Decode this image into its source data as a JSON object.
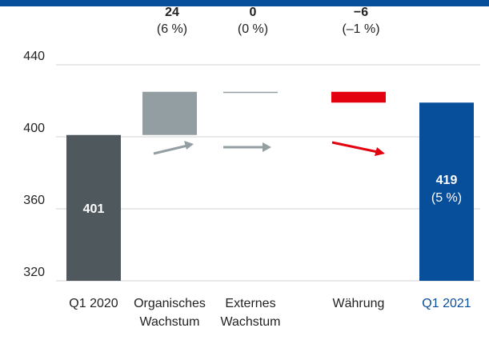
{
  "chart_data": {
    "type": "waterfall",
    "categories": [
      [
        "Q1 2020"
      ],
      [
        "Organisches",
        "Wachstum"
      ],
      [
        "Externes",
        "Wachstum"
      ],
      [
        "Währung"
      ],
      [
        "Q1 2021"
      ]
    ],
    "values": [
      401,
      24,
      0,
      -6,
      419
    ],
    "value_labels": [
      "401",
      "24",
      "0",
      "−6",
      "419"
    ],
    "percent_labels": [
      null,
      "(6 %)",
      "(0 %)",
      "(–1 %)",
      "(5 %)"
    ],
    "is_total": [
      true,
      false,
      false,
      false,
      true
    ],
    "colors": [
      "#4e585d",
      "#939ea3",
      "#939ea3",
      "#e3000f",
      "#084f9b"
    ],
    "ylim": [
      320,
      440
    ],
    "yticks": [
      320,
      360,
      400,
      440
    ],
    "grid": true
  }
}
